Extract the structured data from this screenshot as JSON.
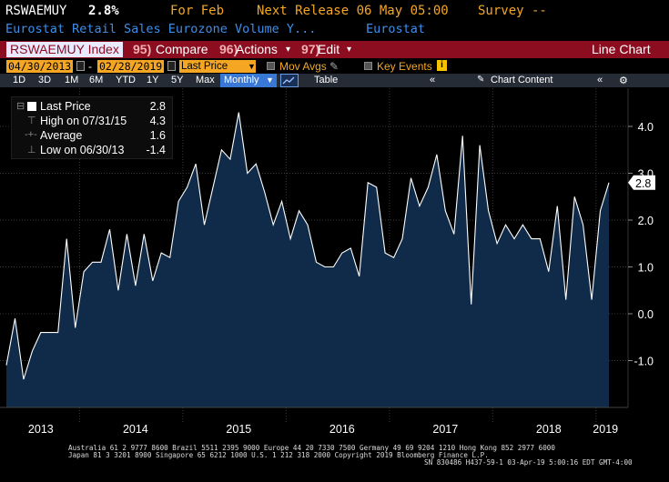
{
  "header": {
    "ticker": "RSWAEMUY",
    "last": "2.8%",
    "period": "For Feb",
    "next_release": "Next Release 06 May 05:00",
    "survey": "Survey --",
    "description": "Eurostat Retail Sales Eurozone Volume Y...",
    "source": "Eurostat"
  },
  "function_bar": {
    "security": "RSWAEMUY Index",
    "compare_num": "95)",
    "compare": "Compare",
    "actions_num": "96)",
    "actions": "Actions",
    "edit_num": "97)",
    "edit": "Edit",
    "chart_type": "Line Chart"
  },
  "controls": {
    "start_date": "04/30/2013",
    "end_date": "02/28/2019",
    "field": "Last Price",
    "mov_avgs": "Mov Avgs",
    "key_events": "Key Events",
    "periods": [
      "1D",
      "3D",
      "1M",
      "6M",
      "YTD",
      "1Y",
      "5Y",
      "Max"
    ],
    "frequency": "Monthly",
    "table": "Table",
    "chart_content": "Chart Content"
  },
  "legend": {
    "last_label": "Last Price",
    "last_value": "2.8",
    "high_label": "High on 07/31/15",
    "high_value": "4.3",
    "avg_label": "Average",
    "avg_value": "1.6",
    "low_label": "Low on 06/30/13",
    "low_value": "-1.4"
  },
  "colors": {
    "background": "#000000",
    "area_fill": "#0f2b49",
    "line": "#ffffff",
    "header_orange": "#f5a623",
    "header_blue": "#3d8ee8",
    "function_bar": "#8b0d1f"
  },
  "chart_data": {
    "type": "area",
    "title": "",
    "xlabel": "",
    "ylabel": "",
    "ylim": [
      -1.95,
      4.75
    ],
    "yticks": [
      -1.0,
      0.0,
      1.0,
      2.0,
      3.0,
      4.0
    ],
    "ytick_labels": [
      "-1.0",
      "0.0",
      "1.0",
      "2.0",
      "3.0",
      "4.0"
    ],
    "x_start": "2013-04",
    "year_labels": [
      "2013",
      "2014",
      "2015",
      "2016",
      "2017",
      "2018",
      "2019"
    ],
    "last_value_label": "2.8",
    "series": [
      {
        "values": [
          -1.1,
          -0.1,
          -1.4,
          -0.8,
          -0.4,
          -0.4,
          -0.4,
          1.6,
          -0.3,
          0.9,
          1.1,
          1.1,
          1.8,
          0.5,
          1.7,
          0.6,
          1.7,
          0.7,
          1.3,
          1.2,
          2.4,
          2.7,
          3.2,
          1.9,
          2.7,
          3.5,
          3.3,
          4.3,
          3.0,
          3.2,
          2.6,
          1.9,
          2.4,
          1.6,
          2.2,
          1.9,
          1.1,
          1.0,
          1.0,
          1.3,
          1.4,
          0.8,
          2.8,
          2.7,
          1.3,
          1.2,
          1.6,
          2.9,
          2.3,
          2.7,
          3.4,
          2.2,
          1.7,
          3.8,
          0.2,
          3.6,
          2.2,
          1.5,
          1.9,
          1.6,
          1.9,
          1.6,
          1.6,
          0.9,
          2.3,
          0.3,
          2.5,
          1.9,
          0.3,
          2.2,
          2.8
        ]
      }
    ]
  },
  "footer": {
    "line1": "Australia 61 2 9777 8600 Brazil 5511 2395 9000 Europe 44 20 7330 7500 Germany 49 69 9204 1210 Hong Kong 852 2977 6000",
    "line2": "Japan 81 3 3201 8900        Singapore 65 6212 1000        U.S. 1 212 318 2000           Copyright 2019 Bloomberg Finance L.P.",
    "line3": "SN 830486 H437-59-1 03-Apr-19  5:00:16 EDT  GMT-4:00"
  }
}
